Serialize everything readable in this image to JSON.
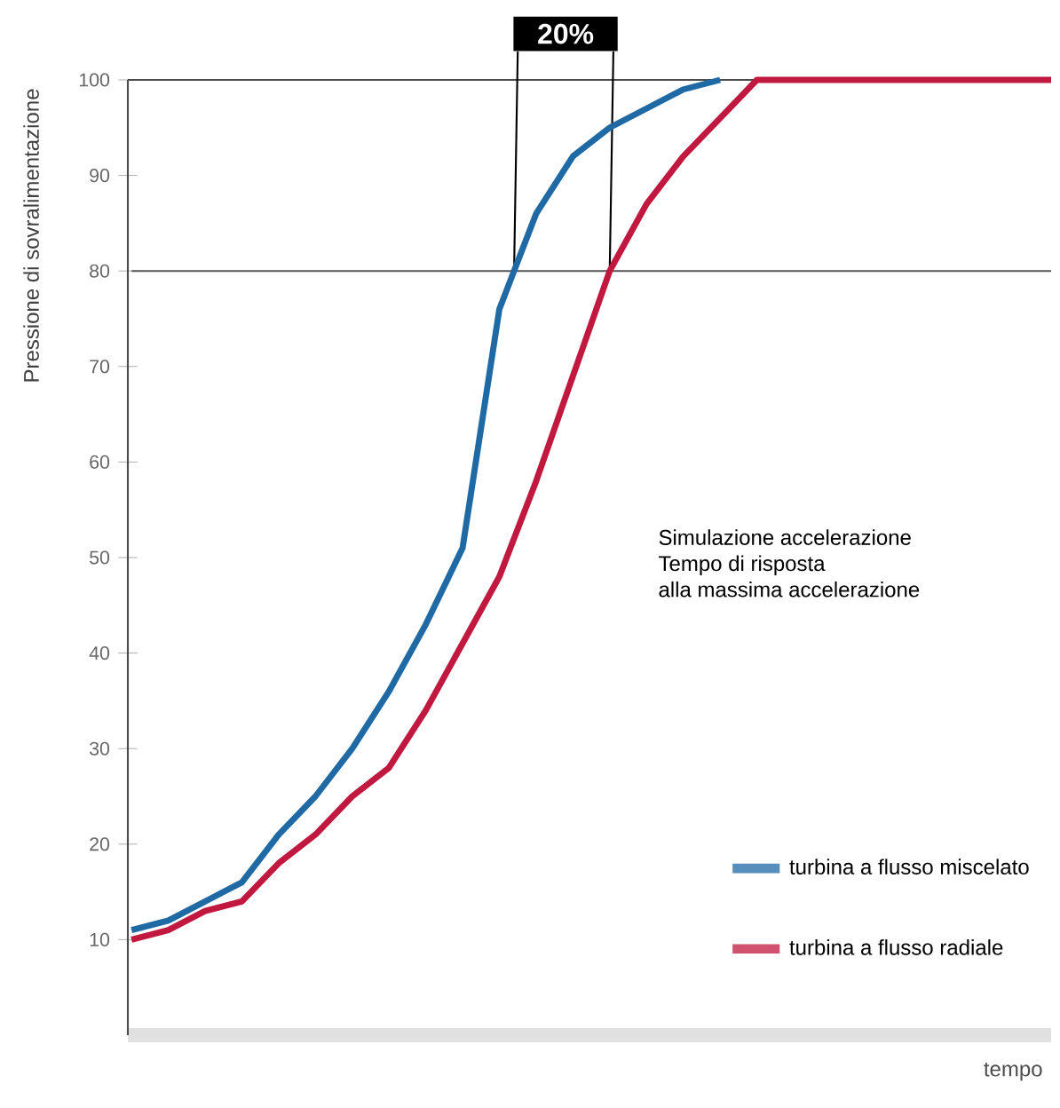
{
  "chart_data": {
    "type": "line",
    "xlabel": "tempo",
    "ylabel": "Pressione di sovralimentazione",
    "categories": [
      null,
      null,
      null,
      null,
      null,
      null,
      null,
      null,
      null,
      null,
      null,
      null,
      null,
      null,
      null,
      null,
      null,
      null,
      null,
      null,
      null,
      null,
      null,
      null,
      null,
      null
    ],
    "ylim": [
      0,
      100
    ],
    "yticks": [
      10,
      20,
      30,
      40,
      50,
      60,
      70,
      80,
      90,
      100
    ],
    "tick_labels": "y",
    "grid": false,
    "legend": "bottom right",
    "marker": "none",
    "line_style": "solid",
    "series": [
      {
        "name": "turbina a flusso miscelato",
        "color": "#1f6aa5",
        "values": [
          11,
          12,
          14,
          16,
          21,
          25,
          30,
          36,
          43,
          51,
          76,
          86,
          92,
          95,
          97,
          99,
          100,
          null,
          null,
          null,
          null,
          null,
          null,
          null,
          null,
          null
        ]
      },
      {
        "name": "turbina a flusso radiale",
        "color": "#c0183f",
        "values": [
          10,
          11,
          13,
          14,
          18,
          21,
          25,
          28,
          34,
          41,
          48,
          58,
          69,
          80,
          87,
          92,
          96,
          100,
          100,
          100,
          100,
          100,
          100,
          100,
          100,
          100
        ]
      }
    ],
    "ref_lines": [
      {
        "axis": "y",
        "value": 80,
        "color": "#555555"
      }
    ],
    "annotations": [
      "20%",
      "Simulazione accelerazione",
      "Tempo di risposta",
      "alla massima accelerazione"
    ]
  }
}
